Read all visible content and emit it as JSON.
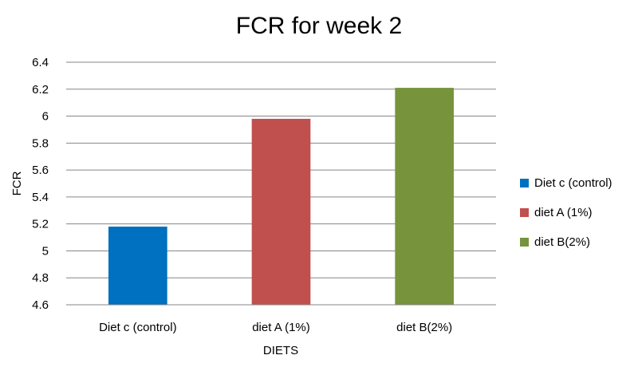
{
  "chart_data": {
    "type": "bar",
    "title": "FCR for week 2",
    "xlabel": "DIETS",
    "ylabel": "FCR",
    "categories": [
      "Diet c (control)",
      "diet A (1%)",
      "diet B(2%)"
    ],
    "values": [
      5.18,
      5.98,
      6.21
    ],
    "colors": [
      "#0070C0",
      "#C0504D",
      "#77933C"
    ],
    "legend": [
      "Diet c (control)",
      "diet A (1%)",
      "diet B(2%)"
    ],
    "legend_position": "right",
    "ylim": [
      4.6,
      6.4
    ],
    "yticks": [
      "4.6",
      "4.8",
      "5",
      "5.2",
      "5.4",
      "5.6",
      "5.8",
      "6",
      "6.2",
      "6.4"
    ],
    "grid": true
  }
}
